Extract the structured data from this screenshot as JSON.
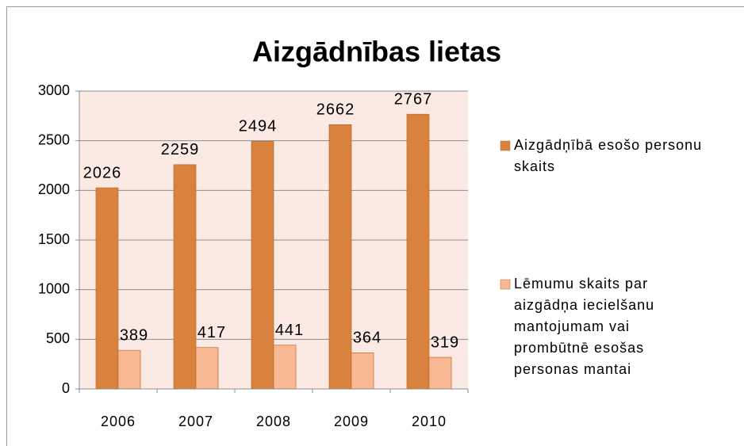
{
  "chart_data": {
    "type": "bar",
    "title": "Aizgādnības lietas",
    "categories": [
      "2006",
      "2007",
      "2008",
      "2009",
      "2010"
    ],
    "series": [
      {
        "name": "Aizgādņībā esošo personu skaits",
        "color": "#d9823e",
        "values": [
          2026,
          2259,
          2494,
          2662,
          2767
        ]
      },
      {
        "name": "Lēmumu skaits par aizgādņa iecielšanu mantojumam vai prombūtnē esošas personas mantai",
        "color": "#f9b894",
        "values": [
          389,
          417,
          441,
          364,
          319
        ]
      }
    ],
    "ylim": [
      0,
      3000
    ],
    "yticks": [
      0,
      500,
      1000,
      1500,
      2000,
      2500,
      3000
    ],
    "grid": true,
    "legend": "right"
  }
}
